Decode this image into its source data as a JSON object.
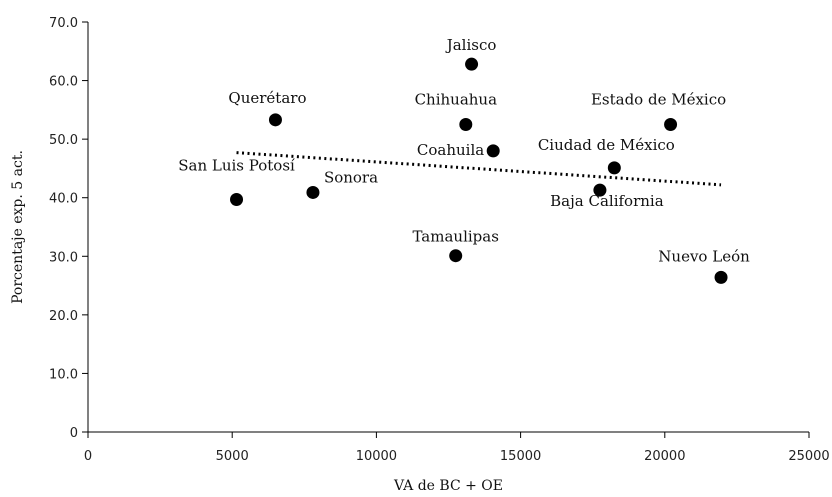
{
  "chart_data": {
    "type": "scatter",
    "xlabel": "VA de BC + OE",
    "ylabel": "Porcentaje exp. 5 act.",
    "xlim": [
      0,
      25000
    ],
    "ylim": [
      0,
      70
    ],
    "x_ticks": [
      0,
      5000,
      10000,
      15000,
      20000,
      25000
    ],
    "x_tick_labels": [
      "0",
      "5000",
      "10000",
      "15000",
      "20000",
      "25000"
    ],
    "y_ticks": [
      0,
      10,
      20,
      30,
      40,
      50,
      60,
      70
    ],
    "y_tick_labels": [
      "0",
      "10.0",
      "20.0",
      "30.0",
      "40.0",
      "50.0",
      "60.0",
      "70.0"
    ],
    "grid": false,
    "marker_color": "#000000",
    "points": [
      {
        "label": "Jalisco",
        "x": 13300,
        "y": 62.8
      },
      {
        "label": "Querétaro",
        "x": 6500,
        "y": 53.3
      },
      {
        "label": "Chihuahua",
        "x": 13100,
        "y": 52.5
      },
      {
        "label": "Estado de México",
        "x": 20200,
        "y": 52.5
      },
      {
        "label": "Coahuila",
        "x": 14050,
        "y": 48.0
      },
      {
        "label": "Ciudad de México",
        "x": 18250,
        "y": 45.1
      },
      {
        "label": "San Luis Potosí",
        "x": 5150,
        "y": 39.7
      },
      {
        "label": "Sonora",
        "x": 7800,
        "y": 40.9
      },
      {
        "label": "Baja California",
        "x": 17750,
        "y": 41.3
      },
      {
        "label": "Tamaulipas",
        "x": 12750,
        "y": 30.1
      },
      {
        "label": "Nuevo León",
        "x": 21950,
        "y": 26.4
      }
    ],
    "trendline": {
      "style": "dotted",
      "x": [
        5150,
        21950
      ],
      "y": [
        47.7,
        42.2
      ]
    }
  }
}
